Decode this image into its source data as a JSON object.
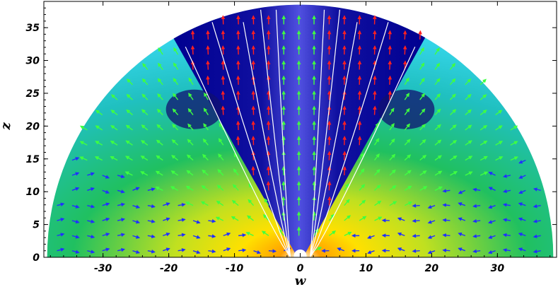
{
  "chart_data": {
    "type": "heatmap",
    "title": "",
    "xlabel": "w",
    "ylabel": "z",
    "xlim": [
      -39,
      39
    ],
    "ylim": [
      0,
      39
    ],
    "x_ticks": [
      -30,
      -20,
      -10,
      0,
      10,
      20,
      30
    ],
    "y_ticks": [
      0,
      5,
      10,
      15,
      20,
      25,
      30,
      35
    ],
    "domain_shape": "semicircle",
    "domain_radius": 38.5,
    "overlays": [
      "velocity-vectors",
      "contour-lines"
    ],
    "colorscale": [
      "#00008b",
      "#0000ff",
      "#00ffff",
      "#00ff00",
      "#ffff00",
      "#ff0000"
    ],
    "vector_colors": {
      "fast": "#ff2020",
      "medium": "#40ff40",
      "slow": "#2030ff"
    },
    "contour_color": "#ffffff",
    "grid": false,
    "legend": "none"
  }
}
